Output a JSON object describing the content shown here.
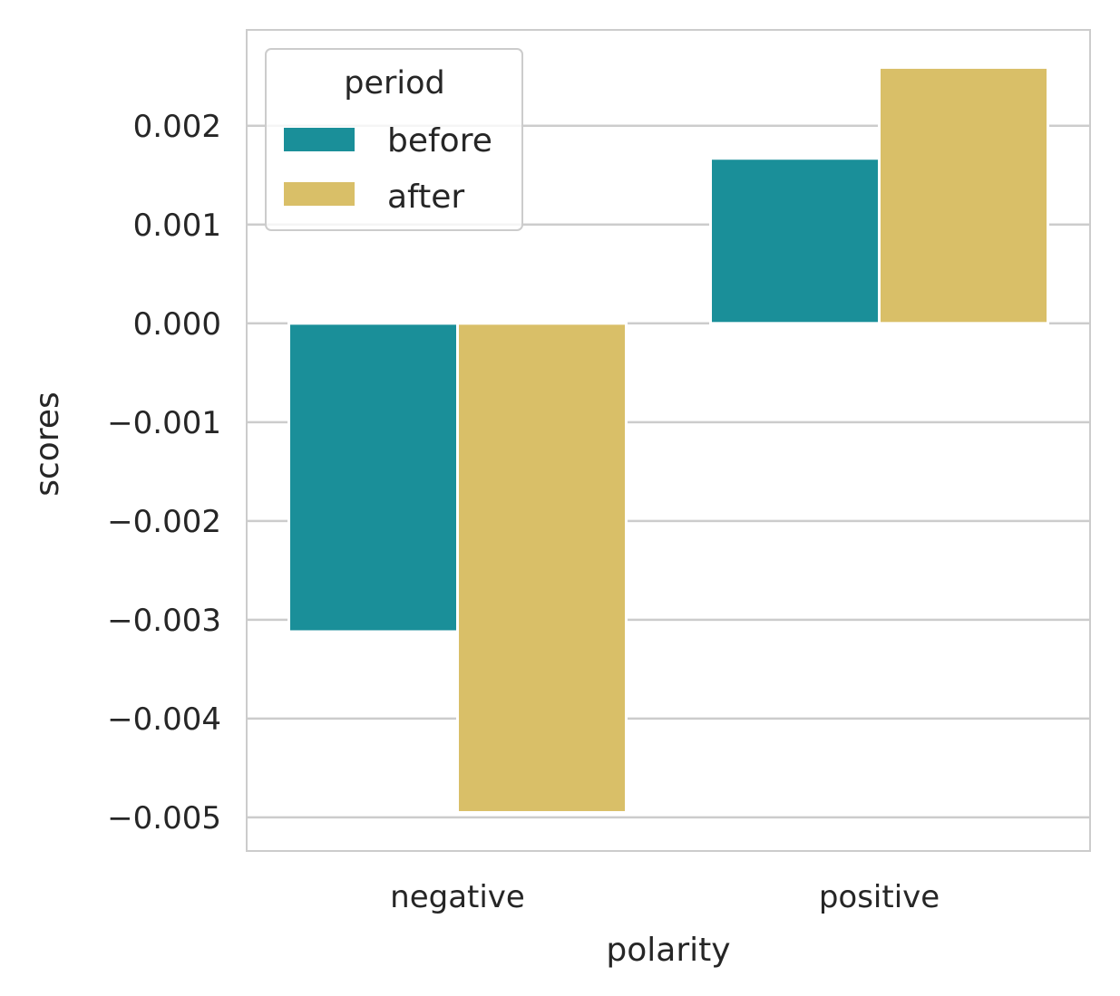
{
  "chart_data": {
    "type": "bar",
    "xlabel": "polarity",
    "ylabel": "scores",
    "categories": [
      "negative",
      "positive"
    ],
    "series": [
      {
        "name": "before",
        "color": "#1a8f99",
        "values": [
          -0.00312,
          0.00167
        ]
      },
      {
        "name": "after",
        "color": "#d9bf68",
        "values": [
          -0.00495,
          0.00259
        ]
      }
    ],
    "ylim": [
      -0.00534,
      0.00297
    ],
    "yticks": [
      0.002,
      0.001,
      0.0,
      -0.001,
      -0.002,
      -0.003,
      -0.004,
      -0.005
    ],
    "ytick_labels": [
      "0.002",
      "0.001",
      "0.000",
      "−0.001",
      "−0.002",
      "−0.003",
      "−0.004",
      "−0.005"
    ],
    "grid": true,
    "legend": {
      "title": "period",
      "placement": "top-left"
    }
  }
}
